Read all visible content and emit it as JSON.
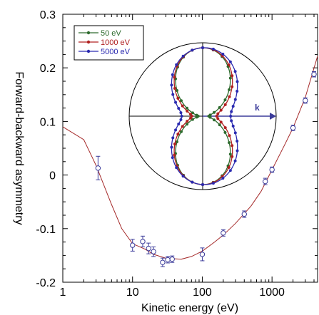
{
  "chart_data": {
    "type": "scatter",
    "xlabel": "Kinetic energy (eV)",
    "ylabel": "Forward-backward asymmetry",
    "xscale": "log",
    "xlim": [
      1,
      4500
    ],
    "ylim": [
      -0.2,
      0.3
    ],
    "xticks": [
      {
        "value": 1,
        "label": "1"
      },
      {
        "value": 10,
        "label": "10"
      },
      {
        "value": 100,
        "label": "100"
      },
      {
        "value": 1000,
        "label": "1000"
      }
    ],
    "yticks": [
      {
        "value": 0.3,
        "label": "0.3"
      },
      {
        "value": 0.2,
        "label": "0.2"
      },
      {
        "value": 0.1,
        "label": "0.1"
      },
      {
        "value": 0,
        "label": "0"
      },
      {
        "value": -0.1,
        "label": "-0.1"
      },
      {
        "value": -0.2,
        "label": "-0.2"
      }
    ],
    "grid": false,
    "colors": {
      "data": "#3b3b9a",
      "curve": "#a52a2a"
    },
    "measured": [
      {
        "x": 3.2,
        "y": 0.013,
        "err": 0.022
      },
      {
        "x": 10,
        "y": -0.131,
        "err": 0.011
      },
      {
        "x": 14,
        "y": -0.124,
        "err": 0.01
      },
      {
        "x": 17,
        "y": -0.137,
        "err": 0.01
      },
      {
        "x": 20,
        "y": -0.143,
        "err": 0.009
      },
      {
        "x": 27,
        "y": -0.163,
        "err": 0.008
      },
      {
        "x": 32,
        "y": -0.158,
        "err": 0.006
      },
      {
        "x": 37,
        "y": -0.157,
        "err": 0.006
      },
      {
        "x": 100,
        "y": -0.148,
        "err": 0.012
      },
      {
        "x": 200,
        "y": -0.108,
        "err": 0.006
      },
      {
        "x": 400,
        "y": -0.073,
        "err": 0.006
      },
      {
        "x": 800,
        "y": -0.012,
        "err": 0.006
      },
      {
        "x": 1000,
        "y": 0.01,
        "err": 0.005
      },
      {
        "x": 2000,
        "y": 0.088,
        "err": 0.005
      },
      {
        "x": 3000,
        "y": 0.139,
        "err": 0.005
      },
      {
        "x": 4000,
        "y": 0.188,
        "err": 0.005
      }
    ],
    "theory": {
      "x": [
        1,
        2,
        3,
        5,
        7,
        10,
        15,
        20,
        30,
        50,
        70,
        100,
        150,
        200,
        300,
        500,
        700,
        1000,
        1500,
        2000,
        3000,
        4500
      ],
      "y": [
        0.09,
        0.066,
        0.018,
        -0.055,
        -0.1,
        -0.128,
        -0.138,
        -0.148,
        -0.155,
        -0.157,
        -0.152,
        -0.142,
        -0.125,
        -0.112,
        -0.09,
        -0.058,
        -0.03,
        0.01,
        0.055,
        0.088,
        0.145,
        0.222
      ]
    },
    "inset": {
      "type": "polar",
      "axis_label": "k",
      "legend": [
        {
          "name": "50 eV",
          "color": "#2e6b2e",
          "beta": 1.6,
          "asym": 0.03
        },
        {
          "name": "1000 eV",
          "color": "#b02020",
          "beta": 1.2,
          "asym": 0.05
        },
        {
          "name": "5000 eV",
          "color": "#2a2ab0",
          "beta": 0.75,
          "asym": 0.09
        }
      ]
    }
  }
}
